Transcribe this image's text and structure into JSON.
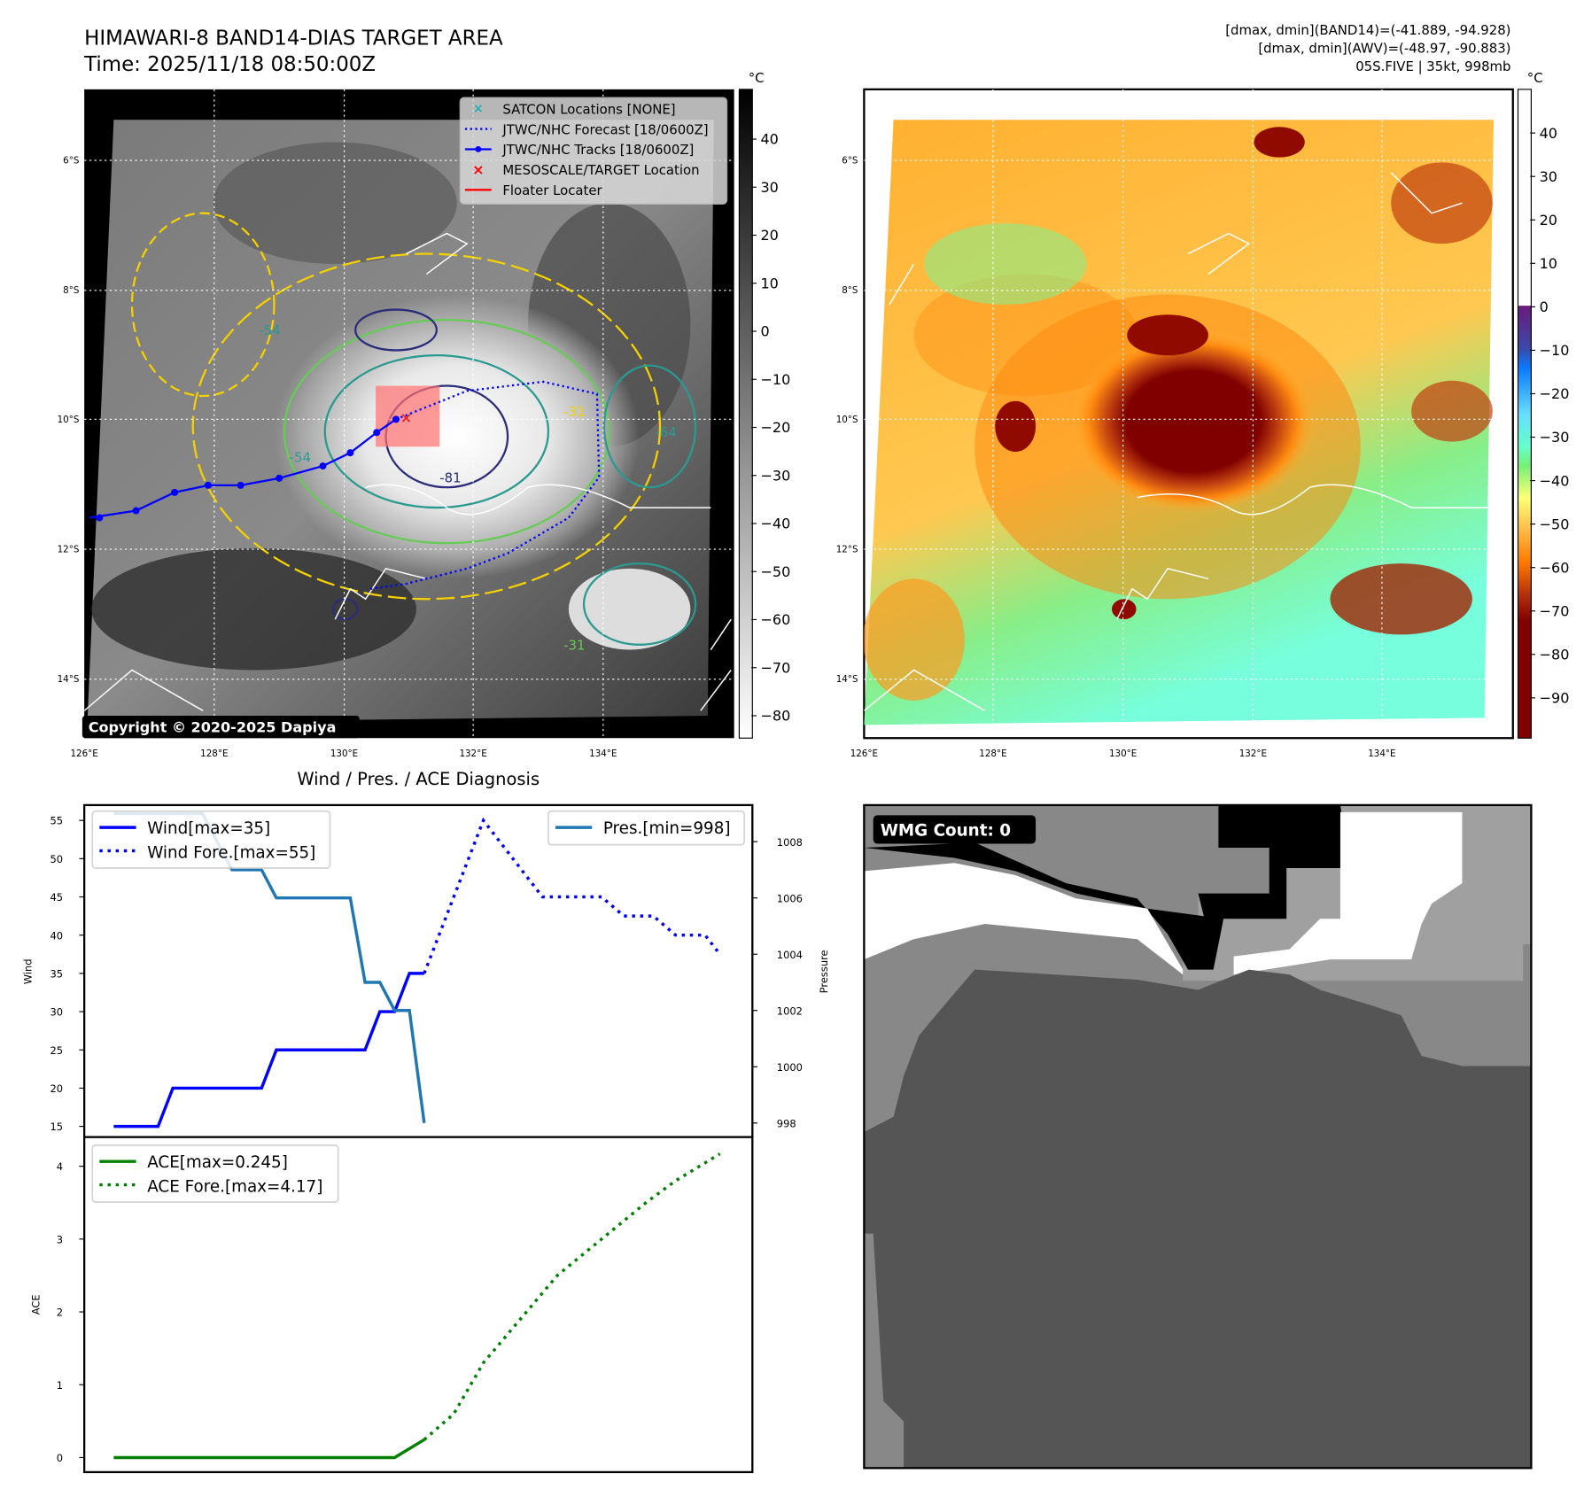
{
  "header": {
    "title": "HIMAWARI-8 BAND14-DIAS TARGET AREA",
    "time": "Time: 2025/11/18 08:50:00Z",
    "stats_band14": "[dmax, dmin](BAND14)=(-41.889, -94.928)",
    "stats_awv": "[dmax, dmin](AWV)=(-48.97, -90.883)",
    "storm": "05S.FIVE | 35kt, 998mb"
  },
  "map": {
    "lat_labels": [
      "6°S",
      "8°S",
      "10°S",
      "12°S",
      "14°S"
    ],
    "lon_labels": [
      "126°E",
      "128°E",
      "130°E",
      "132°E",
      "134°E"
    ],
    "copyright": "Copyright © 2020-2025 Dapiya",
    "contour_labels": [
      "-54",
      "-54",
      "-81",
      "-31",
      "-64",
      "-31"
    ],
    "legend": [
      {
        "label": "SATCON Locations [NONE]",
        "icon": "x-marker-cyan"
      },
      {
        "label": "JTWC/NHC Forecast [18/0600Z]",
        "icon": "dotted-line-blue"
      },
      {
        "label": "JTWC/NHC Tracks [18/0600Z]",
        "icon": "line-dot-blue"
      },
      {
        "label": "MESOSCALE/TARGET Location",
        "icon": "x-marker-red"
      },
      {
        "label": "Floater Locater",
        "icon": "line-red"
      }
    ],
    "colorbar_left": {
      "unit": "°C",
      "ticks": [
        "40",
        "30",
        "20",
        "10",
        "0",
        "−10",
        "−20",
        "−30",
        "−40",
        "−50",
        "−60",
        "−70",
        "−80"
      ]
    },
    "colorbar_right": {
      "unit": "°C",
      "ticks": [
        "40",
        "30",
        "20",
        "10",
        "0",
        "−10",
        "−20",
        "−30",
        "−40",
        "−50",
        "−60",
        "−70",
        "−80",
        "−90"
      ]
    }
  },
  "wmg": {
    "label": "WMG Count: 0"
  },
  "chart_data": [
    {
      "type": "line",
      "title": "Wind / Pres. / ACE Diagnosis",
      "xlabel": "",
      "ylabel": "Wind",
      "y2label": "Pressure",
      "ylim": [
        13.6,
        57
      ],
      "y2lim": [
        997.5,
        1009.3
      ],
      "yticks": [
        15,
        20,
        25,
        30,
        35,
        40,
        45,
        50,
        55
      ],
      "y2ticks": [
        998,
        1000,
        1002,
        1004,
        1006,
        1008
      ],
      "legend_left": [
        "Wind[max=35]",
        "Wind Fore.[max=55]"
      ],
      "legend_right": [
        "Pres.[min=998]"
      ],
      "series": [
        {
          "name": "Wind[max=35]",
          "axis": "left",
          "style": "solid",
          "color": "#0000ff",
          "x": [
            0,
            3,
            4,
            10,
            11,
            17,
            18,
            19,
            20,
            21
          ],
          "y": [
            15,
            15,
            20,
            20,
            25,
            25,
            30,
            30,
            35,
            35
          ]
        },
        {
          "name": "Wind Fore.[max=55]",
          "axis": "left",
          "style": "dotted",
          "color": "#0000ff",
          "x": [
            21,
            25,
            29,
            33,
            34.5,
            36.5,
            38,
            40,
            41
          ],
          "y": [
            35,
            55,
            45,
            45,
            42.5,
            42.5,
            40,
            40,
            37.5
          ]
        },
        {
          "name": "Pres.[min=998]",
          "axis": "right",
          "style": "solid",
          "color": "#1f77b4",
          "x": [
            0,
            6,
            8,
            10,
            11,
            16,
            17,
            18,
            19,
            20,
            21
          ],
          "y": [
            1009,
            1009,
            1007,
            1007,
            1006,
            1006,
            1003,
            1003,
            1002,
            1002,
            998
          ]
        }
      ]
    },
    {
      "type": "line",
      "title": "",
      "xlabel": "",
      "ylabel": "ACE",
      "ylim": [
        -0.2,
        4.4
      ],
      "yticks": [
        0,
        1,
        2,
        3,
        4
      ],
      "legend": [
        "ACE[max=0.245]",
        "ACE Fore.[max=4.17]"
      ],
      "series": [
        {
          "name": "ACE[max=0.245]",
          "style": "solid",
          "color": "#008000",
          "x": [
            0,
            19,
            21
          ],
          "y": [
            0,
            0,
            0.245
          ]
        },
        {
          "name": "ACE Fore.[max=4.17]",
          "style": "dotted",
          "color": "#008000",
          "x": [
            21,
            23,
            25,
            27.5,
            30,
            33,
            36,
            38,
            41
          ],
          "y": [
            0.245,
            0.6,
            1.3,
            1.9,
            2.5,
            3.0,
            3.5,
            3.8,
            4.17
          ]
        }
      ]
    }
  ]
}
